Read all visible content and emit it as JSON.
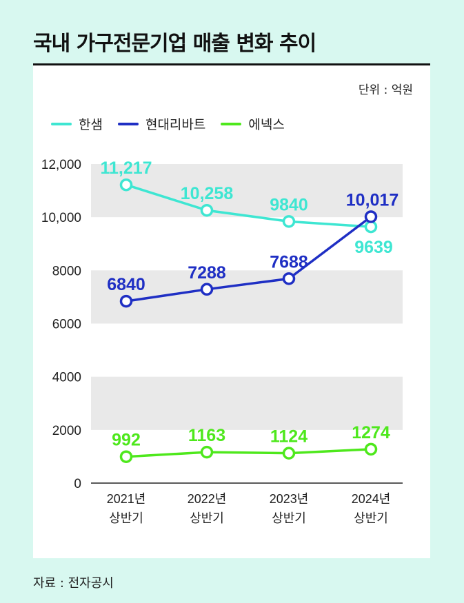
{
  "title": "국내 가구전문기업 매출 변화 추이",
  "unit": "단위 : 억원",
  "source": "자료 : 전자공시",
  "chart_data": {
    "type": "line",
    "categories": [
      [
        "2021년",
        "상반기"
      ],
      [
        "2022년",
        "상반기"
      ],
      [
        "2023년",
        "상반기"
      ],
      [
        "2024년",
        "상반기"
      ]
    ],
    "ylim": [
      0,
      12000
    ],
    "yticks": [
      "0",
      "2000",
      "4000",
      "6000",
      "8000",
      "10,000",
      "12,000"
    ],
    "ytick_values": [
      0,
      2000,
      4000,
      6000,
      8000,
      10000,
      12000
    ],
    "grid": "alternating bands",
    "legend": "top-left",
    "series": [
      {
        "name": "한샘",
        "color": "#3ee6d2",
        "values": [
          11217,
          10258,
          9840,
          9639
        ],
        "labels": [
          "11,217",
          "10,258",
          "9840",
          "9639"
        ]
      },
      {
        "name": "현대리바트",
        "color": "#1f2fc4",
        "values": [
          6840,
          7288,
          7688,
          10017
        ],
        "labels": [
          "6840",
          "7288",
          "7688",
          "10,017"
        ]
      },
      {
        "name": "에넥스",
        "color": "#4ee81c",
        "values": [
          992,
          1163,
          1124,
          1274
        ],
        "labels": [
          "992",
          "1163",
          "1124",
          "1274"
        ]
      }
    ]
  }
}
